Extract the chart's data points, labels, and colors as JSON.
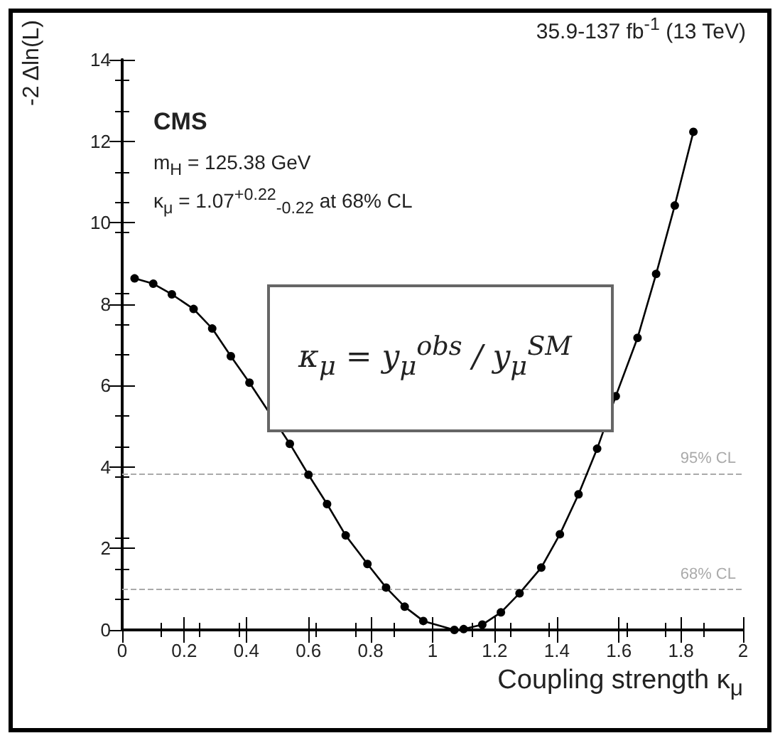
{
  "chart_data": {
    "type": "line",
    "xlabel": "Coupling strength κ$_{μ}$",
    "ylabel": "-2 Δln(L)",
    "annotations": [
      "35.9-137 fb$^{-1}$ (13 TeV)",
      "CMS",
      "m$_{H}$ = 125.38 GeV",
      "κ$_{μ}$ =  1.07$^{+0.22}$$_{-0.22}$ at 68% CL",
      "κ$_{μ}$ = y$_{μ}$$^{obs}$ / y$_{μ}$$^{SM}$"
    ],
    "series": [
      {
        "color": "#000000",
        "x": [
          0.04,
          0.1,
          0.16,
          0.23,
          0.29,
          0.35,
          0.41,
          0.54,
          0.6,
          0.66,
          0.72,
          0.79,
          0.85,
          0.91,
          0.97,
          1.07,
          1.1,
          1.16,
          1.22,
          1.28,
          1.35,
          1.41,
          1.47,
          1.53,
          1.59,
          1.66,
          1.72,
          1.78,
          1.84
        ],
        "values": [
          8.63,
          8.5,
          8.24,
          7.88,
          7.4,
          6.72,
          6.07,
          4.57,
          3.81,
          3.09,
          2.32,
          1.62,
          1.04,
          0.57,
          0.22,
          0.0,
          0.02,
          0.13,
          0.43,
          0.9,
          1.53,
          2.35,
          3.33,
          4.45,
          5.74,
          7.17,
          8.74,
          10.42,
          12.23
        ]
      }
    ],
    "xlim": [
      0,
      2
    ],
    "ylim": [
      0,
      14
    ],
    "xticks": [
      0,
      0.2,
      0.4,
      0.6,
      0.8,
      1,
      1.2,
      1.4,
      1.6,
      1.8,
      2
    ],
    "yticks": [
      0,
      2,
      4,
      6,
      8,
      10,
      12,
      14
    ],
    "ref_lines": [
      {
        "axis": "y",
        "value": 3.84,
        "label": "95% CL",
        "color": "#aaaaaa",
        "line_style": "dashed"
      },
      {
        "axis": "y",
        "value": 1,
        "label": "68% CL",
        "color": "#aaaaaa",
        "line_style": "dashed"
      }
    ],
    "marker": "circle",
    "line_style": "solid",
    "grid": false
  }
}
